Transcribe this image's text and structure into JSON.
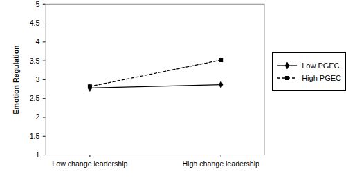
{
  "chart_data": {
    "type": "line",
    "y_label": "Emotion Regulation",
    "categories": [
      "Low change leadership",
      "High change leadership"
    ],
    "series": [
      {
        "name": "Low PGEC",
        "color": "#000000",
        "marker": "diamond",
        "line_style": "solid",
        "values": [
          2.78,
          2.87
        ]
      },
      {
        "name": "High PGEC",
        "color": "#000000",
        "marker": "square",
        "line_style": "dashed",
        "values": [
          2.82,
          3.52
        ]
      }
    ],
    "ylim": [
      1,
      5
    ],
    "yticks": [
      1,
      1.5,
      2,
      2.5,
      3,
      3.5,
      4,
      4.5,
      5
    ],
    "grid": false,
    "legend": "right"
  }
}
